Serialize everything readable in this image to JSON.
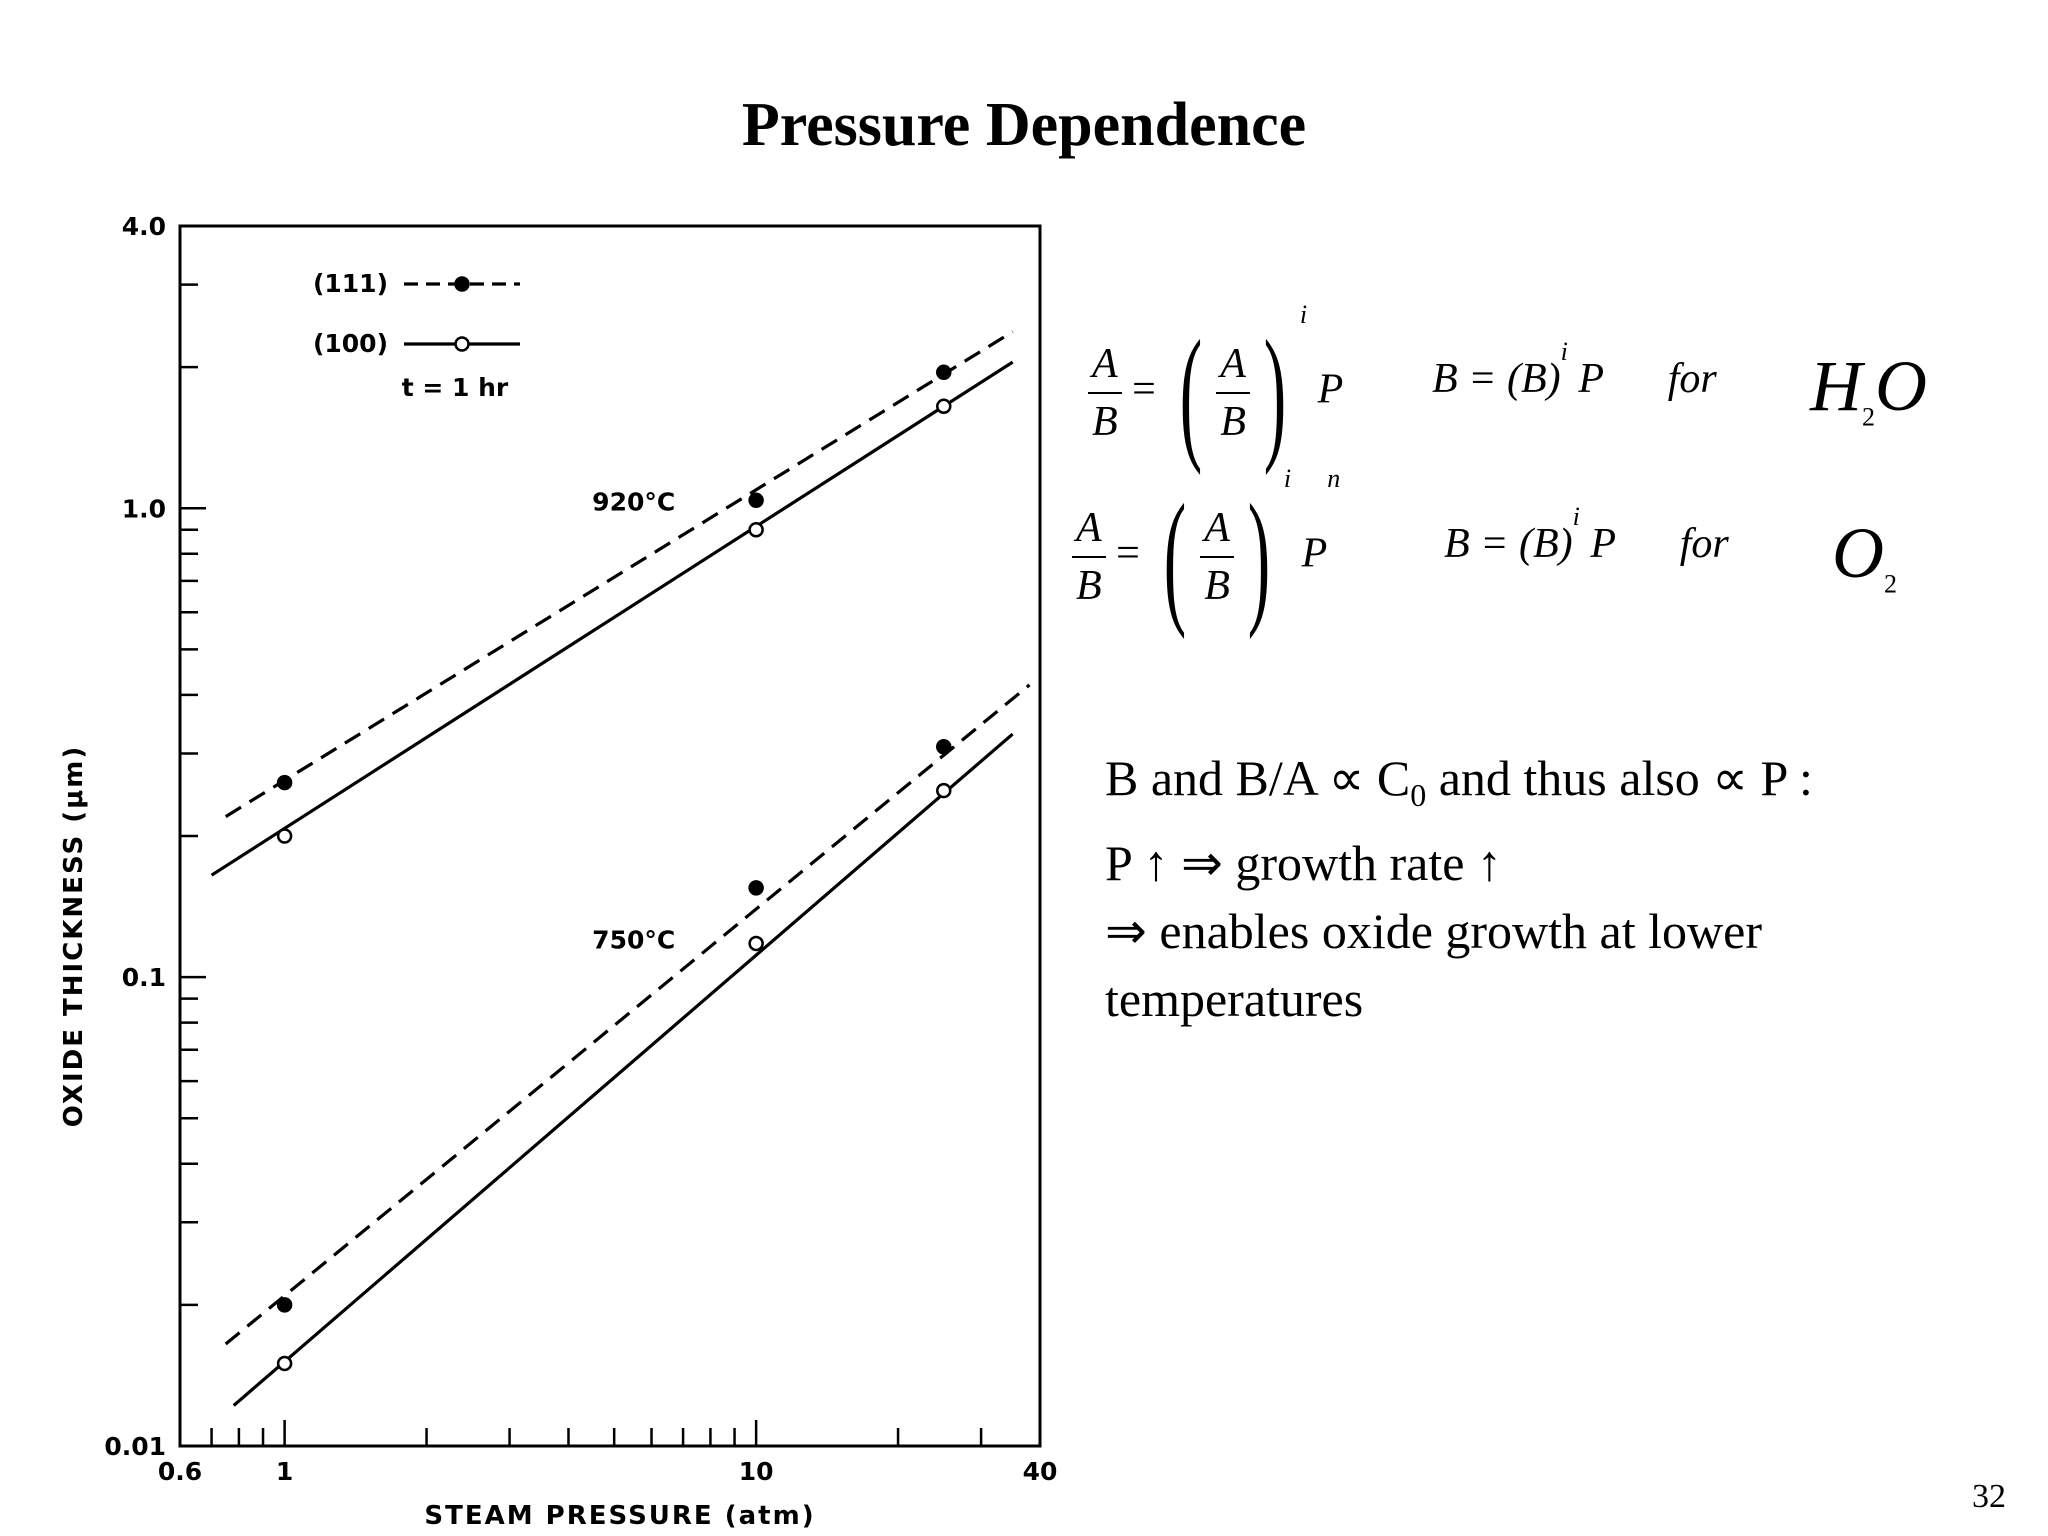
{
  "title": "Pressure Dependence",
  "page_number": "32",
  "chart_data": {
    "type": "line",
    "xscale": "log",
    "yscale": "log",
    "xlabel": "STEAM PRESSURE (atm)",
    "ylabel": "OXIDE THICKNESS (μm)",
    "xlim": [
      0.6,
      40
    ],
    "ylim": [
      0.01,
      4.0
    ],
    "x_tick_labels": [
      "0.6",
      "1",
      "10",
      "40"
    ],
    "y_tick_labels": [
      "0.01",
      "0.1",
      "1.0",
      "4.0"
    ],
    "x_ticks": [
      0.6,
      0.7,
      0.8,
      0.9,
      1,
      2,
      3,
      4,
      5,
      6,
      7,
      8,
      9,
      10,
      20,
      30,
      40
    ],
    "y_ticks": [
      0.01,
      0.02,
      0.03,
      0.04,
      0.05,
      0.06,
      0.07,
      0.08,
      0.09,
      0.1,
      0.2,
      0.3,
      0.4,
      0.5,
      0.6,
      0.7,
      0.8,
      0.9,
      1.0,
      2,
      3,
      4
    ],
    "legend": {
      "position": "top-left",
      "entries": [
        {
          "label": "(111)",
          "style": "dashed",
          "marker": "filled"
        },
        {
          "label": "(100)",
          "style": "solid",
          "marker": "open"
        }
      ],
      "note": "t = 1 hr"
    },
    "series": [
      {
        "group": "920°C",
        "orientation": "(111)",
        "style": "dashed",
        "marker": "filled",
        "points": [
          [
            1,
            0.26
          ],
          [
            10,
            1.04
          ],
          [
            25,
            1.95
          ]
        ],
        "line": [
          [
            0.75,
            0.22
          ],
          [
            35,
            2.38
          ]
        ]
      },
      {
        "group": "920°C",
        "orientation": "(100)",
        "style": "solid",
        "marker": "open",
        "points": [
          [
            1,
            0.2
          ],
          [
            10,
            0.9
          ],
          [
            25,
            1.65
          ]
        ],
        "line": [
          [
            0.7,
            0.165
          ],
          [
            35,
            2.05
          ]
        ]
      },
      {
        "group": "750°C",
        "orientation": "(111)",
        "style": "dashed",
        "marker": "filled",
        "points": [
          [
            1,
            0.02
          ],
          [
            10,
            0.155
          ],
          [
            25,
            0.31
          ]
        ],
        "line": [
          [
            0.75,
            0.0165
          ],
          [
            38,
            0.42
          ]
        ]
      },
      {
        "group": "750°C",
        "orientation": "(100)",
        "style": "solid",
        "marker": "open",
        "points": [
          [
            1,
            0.015
          ],
          [
            10,
            0.118
          ],
          [
            25,
            0.25
          ]
        ],
        "line": [
          [
            0.78,
            0.0122
          ],
          [
            35,
            0.33
          ]
        ]
      }
    ],
    "annotations": [
      {
        "text": "920°C",
        "x": 5.5,
        "y": 0.99
      },
      {
        "text": "750°C",
        "x": 5.5,
        "y": 0.115
      }
    ]
  },
  "equations": {
    "eq1": {
      "A": "A",
      "B": "B",
      "i": "i",
      "P": "P"
    },
    "eq1_rhs": {
      "lhs": "B = (B)",
      "i": "i",
      "P": " P",
      "for": "for"
    },
    "eq1_mol": {
      "a": "H",
      "sub": "2",
      "b": "O"
    },
    "eq2": {
      "A": "A",
      "B": "B",
      "i": "i",
      "P": "P",
      "n": "n"
    },
    "eq2_rhs": {
      "lhs": "B = (B)",
      "i": "i",
      "P": " P",
      "for": "for"
    },
    "eq2_mol": {
      "a": "O",
      "sub": "2"
    }
  },
  "body": {
    "line1a": "B and B/A ∝ C",
    "line1sub": "0",
    "line1b": " and thus also  ∝ P :",
    "line2": " P ↑ ⇒ growth rate ↑",
    "line3": "⇒ enables oxide growth at lower",
    "line4": "temperatures"
  }
}
